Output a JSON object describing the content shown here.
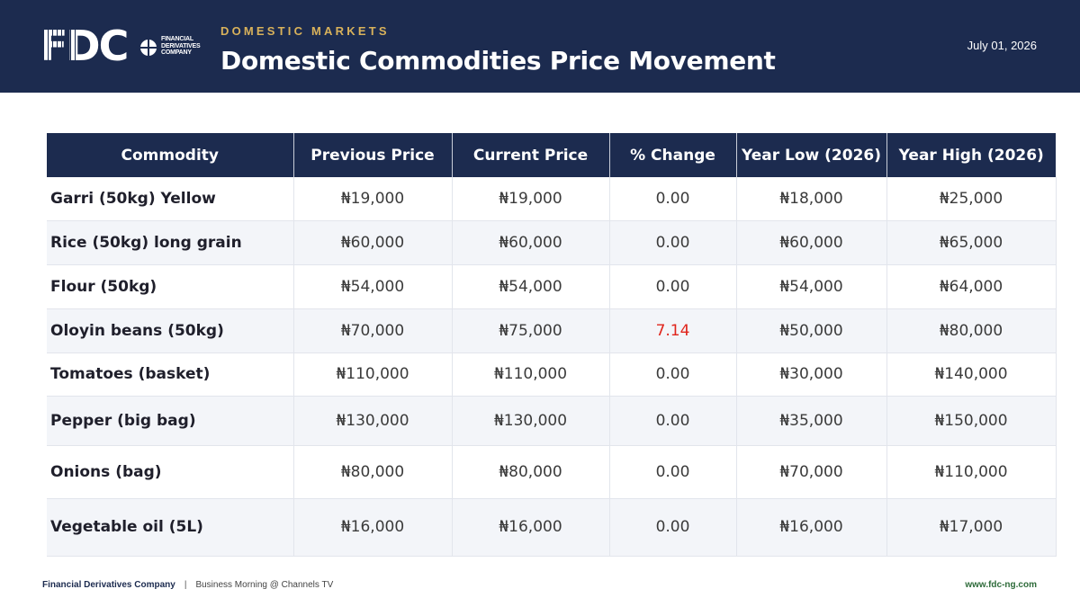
{
  "header": {
    "logo": {
      "mark": "FDC",
      "line1": "FINANCIAL",
      "line2": "DERIVATIVES",
      "line3": "COMPANY"
    },
    "kicker": "DOMESTIC MARKETS",
    "title": "Domestic Commodities Price Movement",
    "date": "July 01, 2026"
  },
  "table": {
    "columns": [
      "Commodity",
      "Previous Price",
      "Current Price",
      "% Change",
      "Year Low (2026)",
      "Year High (2026)"
    ],
    "rows": [
      [
        "Garri (50kg) Yellow",
        "₦19,000",
        "₦19,000",
        "0.00",
        "₦18,000",
        "₦25,000"
      ],
      [
        "Rice (50kg) long grain",
        "₦60,000",
        "₦60,000",
        "0.00",
        "₦60,000",
        "₦65,000"
      ],
      [
        "Flour (50kg)",
        "₦54,000",
        "₦54,000",
        "0.00",
        "₦54,000",
        "₦64,000"
      ],
      [
        "Oloyin beans (50kg)",
        "₦70,000",
        "₦75,000",
        "7.14",
        "₦50,000",
        "₦80,000"
      ],
      [
        "Tomatoes (basket)",
        "₦110,000",
        "₦110,000",
        "0.00",
        "₦30,000",
        "₦140,000"
      ],
      [
        "Pepper (big bag)",
        "₦130,000",
        "₦130,000",
        "0.00",
        "₦35,000",
        "₦150,000"
      ],
      [
        "Onions (bag)",
        "₦80,000",
        "₦80,000",
        "0.00",
        "₦70,000",
        "₦110,000"
      ],
      [
        "Vegetable oil (5L)",
        "₦16,000",
        "₦16,000",
        "0.00",
        "₦16,000",
        "₦17,000"
      ]
    ]
  },
  "footer": {
    "company": "Financial Derivatives Company",
    "separator": "|",
    "show": "Business Morning @ Channels TV",
    "website": "www.fdc-ng.com"
  },
  "colors": {
    "navy": "#1c2b4f",
    "gold": "#d9b25b",
    "increase_red": "#e0251c",
    "website_green": "#2e6b3a"
  }
}
